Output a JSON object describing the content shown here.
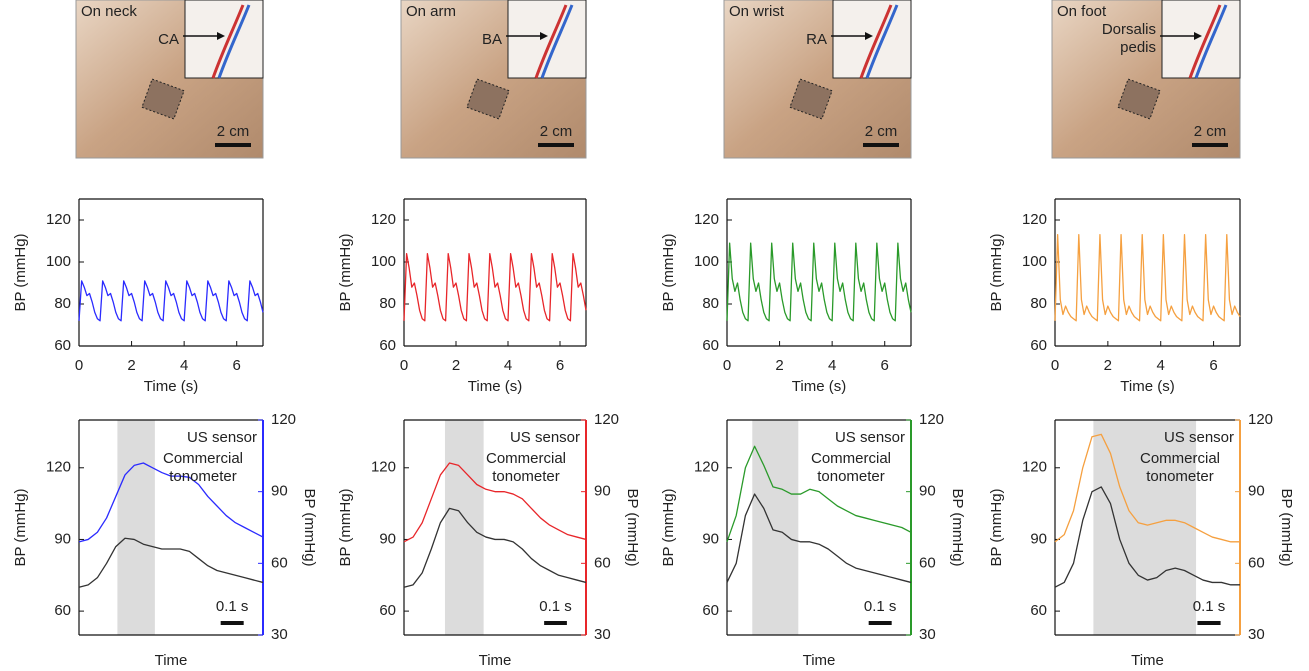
{
  "photos": [
    {
      "caption": "On neck",
      "artery": [
        "CA"
      ],
      "scale_bar": "2 cm"
    },
    {
      "caption": "On arm",
      "artery": [
        "BA"
      ],
      "scale_bar": "2 cm"
    },
    {
      "caption": "On wrist",
      "artery": [
        "RA"
      ],
      "scale_bar": "2 cm"
    },
    {
      "caption": "On foot",
      "artery": [
        "Dorsalis",
        "pedis"
      ],
      "scale_bar": "2 cm"
    }
  ],
  "chart_data": [
    {
      "type": "line",
      "xlabel": "Time (s)",
      "ylabel": "BP (mmHg)",
      "xlim": [
        0,
        7
      ],
      "xticks": [
        0,
        2,
        4,
        6
      ],
      "ylim": [
        60,
        130
      ],
      "yticks": [
        60,
        80,
        100,
        120
      ],
      "color": "#2b2bff",
      "x": [
        0,
        0.1,
        0.2,
        0.3,
        0.4,
        0.5,
        0.6,
        0.7,
        0.8,
        0.9,
        1,
        1.1,
        1.2,
        1.3,
        1.4,
        1.5,
        1.6,
        1.7,
        1.8,
        1.9,
        2,
        2.1,
        2.2,
        2.3,
        2.4,
        2.5,
        2.6,
        2.7,
        2.8,
        2.9,
        3,
        3.1,
        3.2,
        3.3,
        3.4,
        3.5,
        3.6,
        3.7,
        3.8,
        3.9,
        4,
        4.1,
        4.2,
        4.3,
        4.4,
        4.5,
        4.6,
        4.7,
        4.8,
        4.9,
        5,
        5.1,
        5.2,
        5.3,
        5.4,
        5.5,
        5.6,
        5.7,
        5.8,
        5.9,
        6,
        6.1,
        6.2,
        6.3,
        6.4,
        6.5,
        6.6,
        6.7,
        6.8,
        6.9,
        7
      ],
      "values": [
        72,
        91,
        88,
        84,
        85,
        81,
        76,
        73,
        72,
        91,
        88,
        84,
        85,
        81,
        76,
        73,
        72,
        91,
        88,
        84,
        85,
        81,
        76,
        73,
        72,
        91,
        88,
        84,
        85,
        81,
        76,
        73,
        72,
        91,
        88,
        84,
        85,
        81,
        76,
        73,
        72,
        91,
        88,
        84,
        85,
        81,
        76,
        73,
        72,
        91,
        88,
        84,
        85,
        81,
        76,
        73,
        72,
        91,
        88,
        84,
        85,
        81,
        76,
        73,
        72,
        91,
        88,
        84,
        85,
        81,
        76
      ]
    },
    {
      "type": "line",
      "xlabel": "Time (s)",
      "ylabel": "BP (mmHg)",
      "xlim": [
        0,
        7
      ],
      "xticks": [
        0,
        2,
        4,
        6
      ],
      "ylim": [
        60,
        130
      ],
      "yticks": [
        60,
        80,
        100,
        120
      ],
      "color": "#e8262a",
      "x": [
        0,
        0.1,
        0.2,
        0.3,
        0.4,
        0.5,
        0.6,
        0.7,
        0.8,
        0.9,
        1,
        1.1,
        1.2,
        1.3,
        1.4,
        1.5,
        1.6,
        1.7,
        1.8,
        1.9,
        2,
        2.1,
        2.2,
        2.3,
        2.4,
        2.5,
        2.6,
        2.7,
        2.8,
        2.9,
        3,
        3.1,
        3.2,
        3.3,
        3.4,
        3.5,
        3.6,
        3.7,
        3.8,
        3.9,
        4,
        4.1,
        4.2,
        4.3,
        4.4,
        4.5,
        4.6,
        4.7,
        4.8,
        4.9,
        5,
        5.1,
        5.2,
        5.3,
        5.4,
        5.5,
        5.6,
        5.7,
        5.8,
        5.9,
        6,
        6.1,
        6.2,
        6.3,
        6.4,
        6.5,
        6.6,
        6.7,
        6.8,
        6.9,
        7
      ],
      "values": [
        72,
        104,
        97,
        88,
        90,
        84,
        77,
        73,
        72,
        104,
        97,
        88,
        90,
        84,
        77,
        73,
        72,
        104,
        97,
        88,
        90,
        84,
        77,
        73,
        72,
        104,
        97,
        88,
        90,
        84,
        77,
        73,
        72,
        104,
        97,
        88,
        90,
        84,
        77,
        73,
        72,
        104,
        97,
        88,
        90,
        84,
        77,
        73,
        72,
        104,
        97,
        88,
        90,
        84,
        77,
        73,
        72,
        104,
        97,
        88,
        90,
        84,
        77,
        73,
        72,
        104,
        97,
        88,
        90,
        84,
        77
      ]
    },
    {
      "type": "line",
      "xlabel": "Time (s)",
      "ylabel": "BP (mmHg)",
      "xlim": [
        0,
        7
      ],
      "xticks": [
        0,
        2,
        4,
        6
      ],
      "ylim": [
        60,
        130
      ],
      "yticks": [
        60,
        80,
        100,
        120
      ],
      "color": "#2a9a2a",
      "x": [
        0,
        0.1,
        0.2,
        0.3,
        0.4,
        0.5,
        0.6,
        0.7,
        0.8,
        0.9,
        1,
        1.1,
        1.2,
        1.3,
        1.4,
        1.5,
        1.6,
        1.7,
        1.8,
        1.9,
        2,
        2.1,
        2.2,
        2.3,
        2.4,
        2.5,
        2.6,
        2.7,
        2.8,
        2.9,
        3,
        3.1,
        3.2,
        3.3,
        3.4,
        3.5,
        3.6,
        3.7,
        3.8,
        3.9,
        4,
        4.1,
        4.2,
        4.3,
        4.4,
        4.5,
        4.6,
        4.7,
        4.8,
        4.9,
        5,
        5.1,
        5.2,
        5.3,
        5.4,
        5.5,
        5.6,
        5.7,
        5.8,
        5.9,
        6,
        6.1,
        6.2,
        6.3,
        6.4,
        6.5,
        6.6,
        6.7,
        6.8,
        6.9,
        7
      ],
      "values": [
        72,
        109,
        92,
        86,
        90,
        82,
        76,
        73,
        72,
        109,
        92,
        86,
        90,
        82,
        76,
        73,
        72,
        109,
        92,
        86,
        90,
        82,
        76,
        73,
        72,
        109,
        92,
        86,
        90,
        82,
        76,
        73,
        72,
        109,
        92,
        86,
        90,
        82,
        76,
        73,
        72,
        109,
        92,
        86,
        90,
        82,
        76,
        73,
        72,
        109,
        92,
        86,
        90,
        82,
        76,
        73,
        72,
        109,
        92,
        86,
        90,
        82,
        76,
        73,
        72,
        109,
        92,
        86,
        90,
        82,
        76
      ]
    },
    {
      "type": "line",
      "xlabel": "Time (s)",
      "ylabel": "BP (mmHg)",
      "xlim": [
        0,
        7
      ],
      "xticks": [
        0,
        2,
        4,
        6
      ],
      "ylim": [
        60,
        130
      ],
      "yticks": [
        60,
        80,
        100,
        120
      ],
      "color": "#f5a040",
      "x": [
        0,
        0.1,
        0.2,
        0.3,
        0.4,
        0.5,
        0.6,
        0.7,
        0.8,
        0.9,
        1,
        1.1,
        1.2,
        1.3,
        1.4,
        1.5,
        1.6,
        1.7,
        1.8,
        1.9,
        2,
        2.1,
        2.2,
        2.3,
        2.4,
        2.5,
        2.6,
        2.7,
        2.8,
        2.9,
        3,
        3.1,
        3.2,
        3.3,
        3.4,
        3.5,
        3.6,
        3.7,
        3.8,
        3.9,
        4,
        4.1,
        4.2,
        4.3,
        4.4,
        4.5,
        4.6,
        4.7,
        4.8,
        4.9,
        5,
        5.1,
        5.2,
        5.3,
        5.4,
        5.5,
        5.6,
        5.7,
        5.8,
        5.9,
        6,
        6.1,
        6.2,
        6.3,
        6.4,
        6.5,
        6.6,
        6.7,
        6.8,
        6.9,
        7
      ],
      "values": [
        72,
        113,
        82,
        75,
        79,
        76,
        74,
        73,
        72,
        113,
        82,
        75,
        79,
        76,
        74,
        73,
        72,
        113,
        82,
        75,
        79,
        76,
        74,
        73,
        72,
        113,
        82,
        75,
        79,
        76,
        74,
        73,
        72,
        113,
        82,
        75,
        79,
        76,
        74,
        73,
        72,
        113,
        82,
        75,
        79,
        76,
        74,
        73,
        72,
        113,
        82,
        75,
        79,
        76,
        74,
        73,
        72,
        113,
        82,
        75,
        79,
        76,
        74,
        73,
        72,
        113,
        82,
        75,
        79,
        76,
        74
      ]
    },
    {
      "type": "line",
      "xlabel": "Time",
      "ylabel": "BP (mmHg)",
      "y2label": "BP (mmHg)",
      "xlim": [
        0,
        0.8
      ],
      "ylim": [
        50,
        140
      ],
      "yticks": [
        60,
        90,
        120
      ],
      "y2lim": [
        30,
        120
      ],
      "y2ticks": [
        30,
        60,
        90,
        120
      ],
      "axis_color": "#2b2bff",
      "highlight": [
        0.167,
        0.33
      ],
      "scalebar": {
        "value": 0.1,
        "label": "0.1 s"
      },
      "x": [
        0,
        0.04,
        0.08,
        0.12,
        0.16,
        0.2,
        0.24,
        0.28,
        0.32,
        0.36,
        0.4,
        0.44,
        0.48,
        0.52,
        0.56,
        0.6,
        0.64,
        0.68,
        0.72,
        0.76,
        0.8
      ],
      "series": [
        {
          "name": "US sensor",
          "color": "#2b2bff",
          "axis": "y2",
          "values": [
            69,
            70,
            73,
            79,
            88,
            97,
            101,
            102,
            100,
            98,
            96.5,
            96.5,
            96,
            93,
            88,
            84,
            80,
            77,
            75,
            73,
            71
          ]
        },
        {
          "name": "Commercial tonometer",
          "color": "#333333",
          "axis": "y",
          "values": [
            70,
            71,
            74,
            80,
            87,
            90.5,
            90,
            88,
            87,
            86,
            86,
            86,
            85,
            82,
            79,
            77,
            76,
            75,
            74,
            73,
            72
          ]
        }
      ]
    },
    {
      "type": "line",
      "xlabel": "Time",
      "ylabel": "BP (mmHg)",
      "y2label": "BP (mmHg)",
      "xlim": [
        0,
        0.8
      ],
      "ylim": [
        50,
        140
      ],
      "yticks": [
        60,
        90,
        120
      ],
      "y2lim": [
        30,
        120
      ],
      "y2ticks": [
        30,
        60,
        90,
        120
      ],
      "axis_color": "#e8262a",
      "highlight": [
        0.18,
        0.35
      ],
      "scalebar": {
        "value": 0.1,
        "label": "0.1 s"
      },
      "x": [
        0,
        0.04,
        0.08,
        0.12,
        0.16,
        0.2,
        0.24,
        0.28,
        0.32,
        0.36,
        0.4,
        0.44,
        0.48,
        0.52,
        0.56,
        0.6,
        0.64,
        0.68,
        0.72,
        0.76,
        0.8
      ],
      "series": [
        {
          "name": "US sensor",
          "color": "#e8262a",
          "axis": "y2",
          "values": [
            69,
            71,
            77,
            87,
            97,
            102,
            101,
            97,
            93,
            91,
            90,
            90,
            89,
            87,
            83,
            79,
            76,
            74,
            72,
            71,
            70
          ]
        },
        {
          "name": "Commercial tonometer",
          "color": "#333333",
          "axis": "y",
          "values": [
            70,
            71,
            76,
            86,
            97,
            103,
            102,
            97,
            93,
            91,
            90,
            90,
            89,
            86,
            82,
            79,
            77,
            75,
            74,
            73,
            72
          ]
        }
      ]
    },
    {
      "type": "line",
      "xlabel": "Time",
      "ylabel": "BP (mmHg)",
      "y2label": "BP (mmHg)",
      "xlim": [
        0,
        0.8
      ],
      "ylim": [
        50,
        140
      ],
      "yticks": [
        60,
        90,
        120
      ],
      "y2lim": [
        30,
        120
      ],
      "y2ticks": [
        30,
        60,
        90,
        120
      ],
      "axis_color": "#2a9a2a",
      "highlight": [
        0.11,
        0.31
      ],
      "scalebar": {
        "value": 0.1,
        "label": "0.1 s"
      },
      "x": [
        0,
        0.04,
        0.08,
        0.12,
        0.16,
        0.2,
        0.24,
        0.28,
        0.32,
        0.36,
        0.4,
        0.44,
        0.48,
        0.52,
        0.56,
        0.6,
        0.64,
        0.68,
        0.72,
        0.76,
        0.8
      ],
      "series": [
        {
          "name": "US sensor",
          "color": "#2a9a2a",
          "axis": "y2",
          "values": [
            69,
            80,
            100,
            109,
            101,
            92,
            91,
            89,
            89,
            91,
            90,
            87,
            84,
            82,
            80,
            79,
            78,
            77,
            76,
            75,
            73
          ]
        },
        {
          "name": "Commercial tonometer",
          "color": "#333333",
          "axis": "y",
          "values": [
            72,
            80,
            100,
            109,
            103,
            94,
            93,
            90,
            89,
            89,
            88,
            86,
            83,
            80,
            78,
            77,
            76,
            75,
            74,
            73,
            72
          ]
        }
      ]
    },
    {
      "type": "line",
      "xlabel": "Time",
      "ylabel": "BP (mmHg)",
      "y2label": "BP (mmHg)",
      "xlim": [
        0,
        0.8
      ],
      "ylim": [
        50,
        140
      ],
      "yticks": [
        60,
        90,
        120
      ],
      "y2lim": [
        30,
        120
      ],
      "y2ticks": [
        30,
        60,
        90,
        120
      ],
      "axis_color": "#f5a040",
      "highlight": [
        0.166,
        0.61
      ],
      "scalebar": {
        "value": 0.1,
        "label": "0.1 s"
      },
      "x": [
        0,
        0.04,
        0.08,
        0.12,
        0.16,
        0.2,
        0.24,
        0.28,
        0.32,
        0.36,
        0.4,
        0.44,
        0.48,
        0.52,
        0.56,
        0.6,
        0.64,
        0.68,
        0.72,
        0.76,
        0.8
      ],
      "series": [
        {
          "name": "US sensor",
          "color": "#f5a040",
          "axis": "y2",
          "values": [
            69,
            72,
            82,
            100,
            113,
            114,
            106,
            92,
            82,
            77,
            76,
            77,
            78,
            78,
            77,
            75,
            73,
            71,
            70,
            69,
            69
          ]
        },
        {
          "name": "Commercial tonometer",
          "color": "#333333",
          "axis": "y",
          "values": [
            70,
            72,
            80,
            98,
            110,
            112,
            105,
            90,
            80,
            75,
            73,
            74,
            77,
            78,
            77,
            75,
            73,
            72,
            72,
            71,
            71
          ]
        }
      ]
    }
  ]
}
